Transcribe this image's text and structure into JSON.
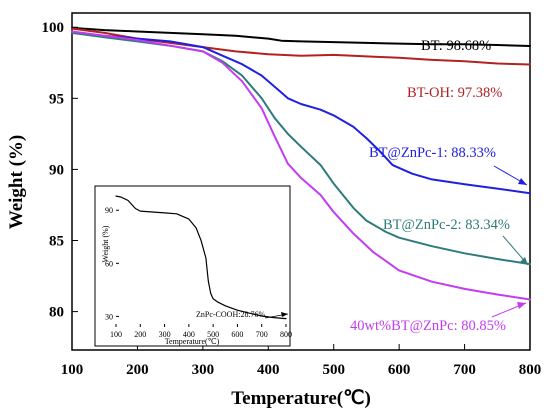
{
  "chart_data": [
    {
      "type": "line",
      "xlabel": "Temperature(℃)",
      "ylabel": "Weight (%)",
      "xlim": [
        100,
        800
      ],
      "ylim": [
        77.3,
        101.0
      ],
      "xticks": [
        100,
        200,
        300,
        400,
        500,
        600,
        700,
        800
      ],
      "yticks": [
        80,
        85,
        90,
        95,
        100
      ],
      "grid": false,
      "series": [
        {
          "name": "BT",
          "label": "BT:  98.68%",
          "color": "#000000",
          "x": [
            100,
            150,
            200,
            250,
            300,
            350,
            400,
            420,
            450,
            500,
            550,
            600,
            650,
            700,
            750,
            800
          ],
          "y": [
            99.95,
            99.8,
            99.7,
            99.6,
            99.5,
            99.4,
            99.2,
            99.05,
            99.0,
            98.95,
            98.9,
            98.85,
            98.8,
            98.8,
            98.75,
            98.68
          ]
        },
        {
          "name": "BT-OH",
          "label": "BT-OH:  97.38%",
          "color": "#b22222",
          "x": [
            100,
            150,
            200,
            250,
            300,
            350,
            400,
            450,
            500,
            550,
            600,
            650,
            700,
            750,
            800
          ],
          "y": [
            99.9,
            99.6,
            99.2,
            98.9,
            98.6,
            98.3,
            98.1,
            98.0,
            98.05,
            97.95,
            97.85,
            97.7,
            97.6,
            97.45,
            97.38
          ]
        },
        {
          "name": "BT@ZnPc-1",
          "label": "BT@ZnPc-1:  88.33%",
          "color": "#2020e0",
          "x": [
            100,
            150,
            200,
            250,
            300,
            330,
            360,
            390,
            410,
            430,
            450,
            480,
            500,
            530,
            550,
            570,
            590,
            620,
            650,
            700,
            750,
            800
          ],
          "y": [
            99.6,
            99.4,
            99.2,
            99.0,
            98.6,
            98.0,
            97.4,
            96.6,
            95.8,
            95.0,
            94.6,
            94.2,
            93.8,
            93.0,
            92.2,
            91.3,
            90.3,
            89.7,
            89.3,
            88.95,
            88.65,
            88.33
          ]
        },
        {
          "name": "BT@ZnPc-2",
          "label": "BT@ZnPc-2:  83.34%",
          "color": "#2e7b7b",
          "x": [
            100,
            150,
            200,
            250,
            300,
            330,
            360,
            390,
            410,
            430,
            450,
            480,
            500,
            530,
            550,
            580,
            600,
            650,
            700,
            750,
            800
          ],
          "y": [
            99.6,
            99.3,
            99.0,
            98.7,
            98.3,
            97.6,
            96.6,
            95.0,
            93.6,
            92.5,
            91.6,
            90.3,
            89.0,
            87.3,
            86.4,
            85.6,
            85.2,
            84.6,
            84.1,
            83.7,
            83.34
          ]
        },
        {
          "name": "40wt%BT@ZnPc",
          "label": "40wt%BT@ZnPc:  80.85%",
          "color": "#c43cf0",
          "x": [
            100,
            150,
            200,
            250,
            300,
            330,
            360,
            390,
            410,
            430,
            450,
            480,
            500,
            530,
            560,
            600,
            650,
            700,
            750,
            800
          ],
          "y": [
            99.7,
            99.4,
            99.1,
            98.7,
            98.3,
            97.5,
            96.2,
            94.3,
            92.3,
            90.4,
            89.4,
            88.2,
            87.0,
            85.5,
            84.2,
            82.9,
            82.1,
            81.6,
            81.2,
            80.85
          ]
        }
      ]
    },
    {
      "type": "line",
      "xlabel": "Temperature(℃)",
      "ylabel": "Weight (%)",
      "xlim": [
        100,
        800
      ],
      "ylim": [
        24,
        102
      ],
      "xticks": [
        100,
        200,
        300,
        400,
        500,
        600,
        700,
        800
      ],
      "yticks": [
        30,
        60,
        90
      ],
      "grid": false,
      "series": [
        {
          "name": "ZnPc-COOH",
          "label": "ZnPc-COOH:28.76%",
          "color": "#000000",
          "x": [
            100,
            120,
            150,
            180,
            200,
            250,
            300,
            350,
            400,
            430,
            450,
            470,
            480,
            490,
            500,
            520,
            550,
            600,
            650,
            700,
            750,
            800
          ],
          "y": [
            98.0,
            97.5,
            95.5,
            91.0,
            89.5,
            89.0,
            88.5,
            88.0,
            85.0,
            80.0,
            73.0,
            63.0,
            50.0,
            43.0,
            40.0,
            38.0,
            36.0,
            33.5,
            31.8,
            30.2,
            29.3,
            28.76
          ]
        }
      ]
    }
  ]
}
